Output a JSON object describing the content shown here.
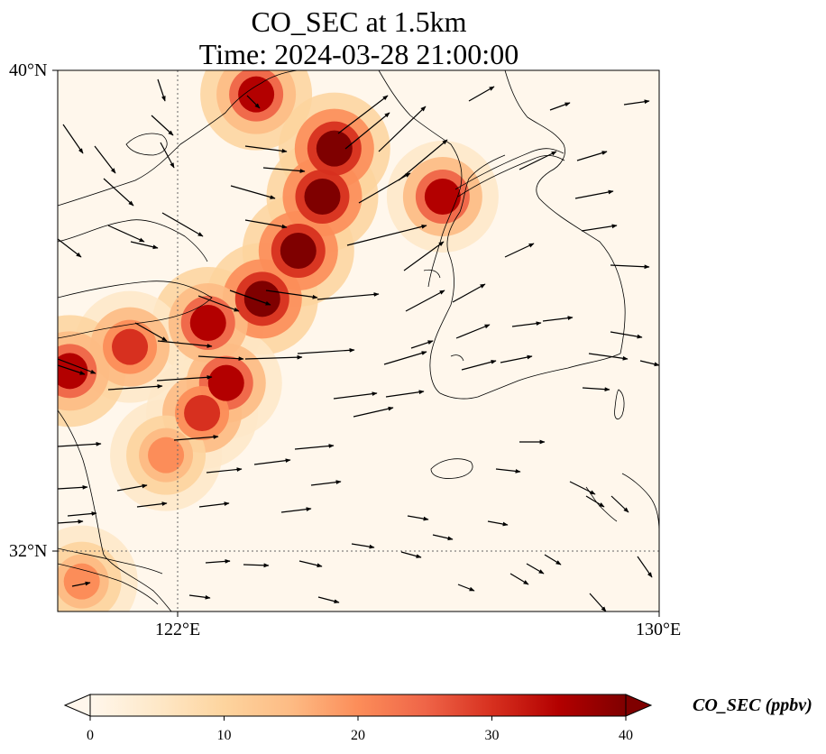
{
  "title": {
    "line1": "CO_SEC at 1.5km",
    "line2": "Time: 2024-03-28 21:00:00"
  },
  "axes": {
    "lat_ticks": [
      "40°N",
      "32°N"
    ],
    "lon_ticks": [
      "122°E",
      "130°E"
    ],
    "lon_range": [
      120,
      130
    ],
    "lat_range": [
      31,
      40
    ]
  },
  "colorbar": {
    "label": "CO_SEC (ppbv)",
    "ticks": [
      "0",
      "10",
      "20",
      "30",
      "40"
    ],
    "range": [
      0,
      40
    ],
    "colormap": "OrRd",
    "extend": "both",
    "colors": [
      "#fff7ec",
      "#fee8c8",
      "#fdd49e",
      "#fdbb84",
      "#fc8d59",
      "#ef6548",
      "#d7301f",
      "#b30000",
      "#7f0000"
    ]
  },
  "chart_data": {
    "type": "heatmap",
    "variable": "CO_SEC",
    "units": "ppbv",
    "overlay": "wind vectors",
    "plume": [
      {
        "lon": 124.6,
        "lat": 38.7,
        "value": 40
      },
      {
        "lon": 124.4,
        "lat": 37.9,
        "value": 40
      },
      {
        "lon": 124.0,
        "lat": 37.0,
        "value": 40
      },
      {
        "lon": 123.4,
        "lat": 36.2,
        "value": 40
      },
      {
        "lon": 122.5,
        "lat": 35.8,
        "value": 35
      },
      {
        "lon": 121.2,
        "lat": 35.4,
        "value": 32
      },
      {
        "lon": 120.2,
        "lat": 35.0,
        "value": 35
      },
      {
        "lon": 122.8,
        "lat": 34.8,
        "value": 34
      },
      {
        "lon": 122.4,
        "lat": 34.3,
        "value": 30
      },
      {
        "lon": 121.8,
        "lat": 33.6,
        "value": 18
      },
      {
        "lon": 126.4,
        "lat": 37.9,
        "value": 34
      },
      {
        "lon": 123.3,
        "lat": 39.6,
        "value": 35
      },
      {
        "lon": 120.4,
        "lat": 31.5,
        "value": 18
      }
    ]
  }
}
